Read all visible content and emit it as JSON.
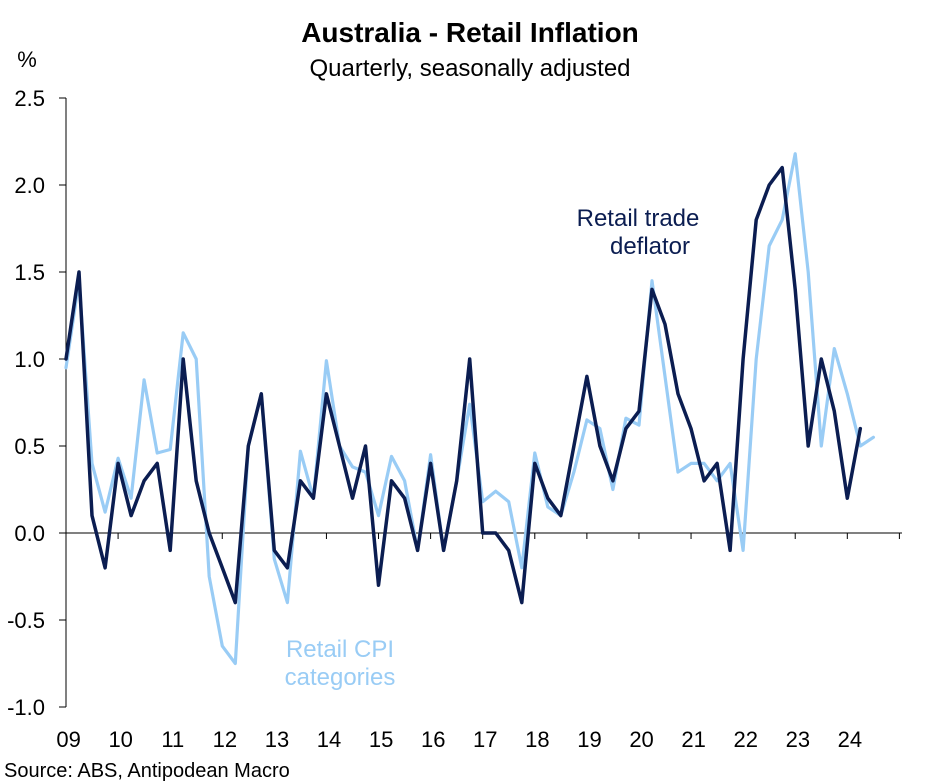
{
  "chart_data": {
    "type": "line",
    "title": "Australia - Retail Inflation",
    "subtitle": "Quarterly, seasonally adjusted",
    "ylabel": "%",
    "ylim": [
      -1.0,
      2.5
    ],
    "yticks": [
      "2.5",
      "2.0",
      "1.5",
      "1.0",
      "0.5",
      "0.0",
      "-0.5",
      "-1.0"
    ],
    "ytick_values": [
      2.5,
      2.0,
      1.5,
      1.0,
      0.5,
      0.0,
      -0.5,
      -1.0
    ],
    "xlim": [
      2009.0,
      2025.05
    ],
    "x_tick_labels": [
      "09",
      "10",
      "11",
      "12",
      "13",
      "14",
      "15",
      "16",
      "17",
      "18",
      "19",
      "20",
      "21",
      "22",
      "23",
      "24"
    ],
    "x_tick_years": [
      2009,
      2010,
      2011,
      2012,
      2013,
      2014,
      2015,
      2016,
      2017,
      2018,
      2019,
      2020,
      2021,
      2022,
      2023,
      2024
    ],
    "series": [
      {
        "name": "Retail CPI categories",
        "label_lines": [
          "Retail CPI",
          "categories"
        ],
        "color": "#99ccf5",
        "x_start": 2009.0,
        "step": 0.25,
        "values": [
          0.95,
          1.45,
          0.4,
          0.12,
          0.43,
          0.2,
          0.88,
          0.46,
          0.48,
          1.15,
          1.0,
          -0.25,
          -0.65,
          -0.75,
          0.5,
          0.8,
          -0.15,
          -0.4,
          0.47,
          0.2,
          0.99,
          0.5,
          0.38,
          0.35,
          0.1,
          0.44,
          0.3,
          -0.1,
          0.45,
          -0.1,
          0.3,
          0.74,
          0.18,
          0.24,
          0.18,
          -0.2,
          0.46,
          0.15,
          0.1,
          0.35,
          0.65,
          0.6,
          0.25,
          0.66,
          0.62,
          1.45,
          0.9,
          0.35,
          0.4,
          0.4,
          0.3,
          0.4,
          -0.1,
          1.0,
          1.65,
          1.8,
          2.18,
          1.5,
          0.5,
          1.06,
          0.8,
          0.5,
          0.55
        ]
      },
      {
        "name": "Retail trade deflator",
        "label_lines": [
          "Retail trade",
          "deflator"
        ],
        "color": "#0b1d51",
        "x_start": 2009.0,
        "step": 0.25,
        "values": [
          1.0,
          1.5,
          0.1,
          -0.2,
          0.4,
          0.1,
          0.3,
          0.4,
          -0.1,
          1.0,
          0.3,
          0.0,
          -0.2,
          -0.4,
          0.5,
          0.8,
          -0.1,
          -0.2,
          0.3,
          0.2,
          0.8,
          0.5,
          0.2,
          0.5,
          -0.3,
          0.3,
          0.2,
          -0.1,
          0.4,
          -0.1,
          0.3,
          1.0,
          0.0,
          0.0,
          -0.1,
          -0.4,
          0.4,
          0.2,
          0.1,
          0.5,
          0.9,
          0.5,
          0.3,
          0.6,
          0.7,
          1.4,
          1.2,
          0.8,
          0.6,
          0.3,
          0.4,
          -0.1,
          1.0,
          1.8,
          2.0,
          2.1,
          1.4,
          0.5,
          1.0,
          0.7,
          0.2,
          0.6
        ]
      }
    ],
    "source": "Source: ABS, Antipodean Macro"
  }
}
